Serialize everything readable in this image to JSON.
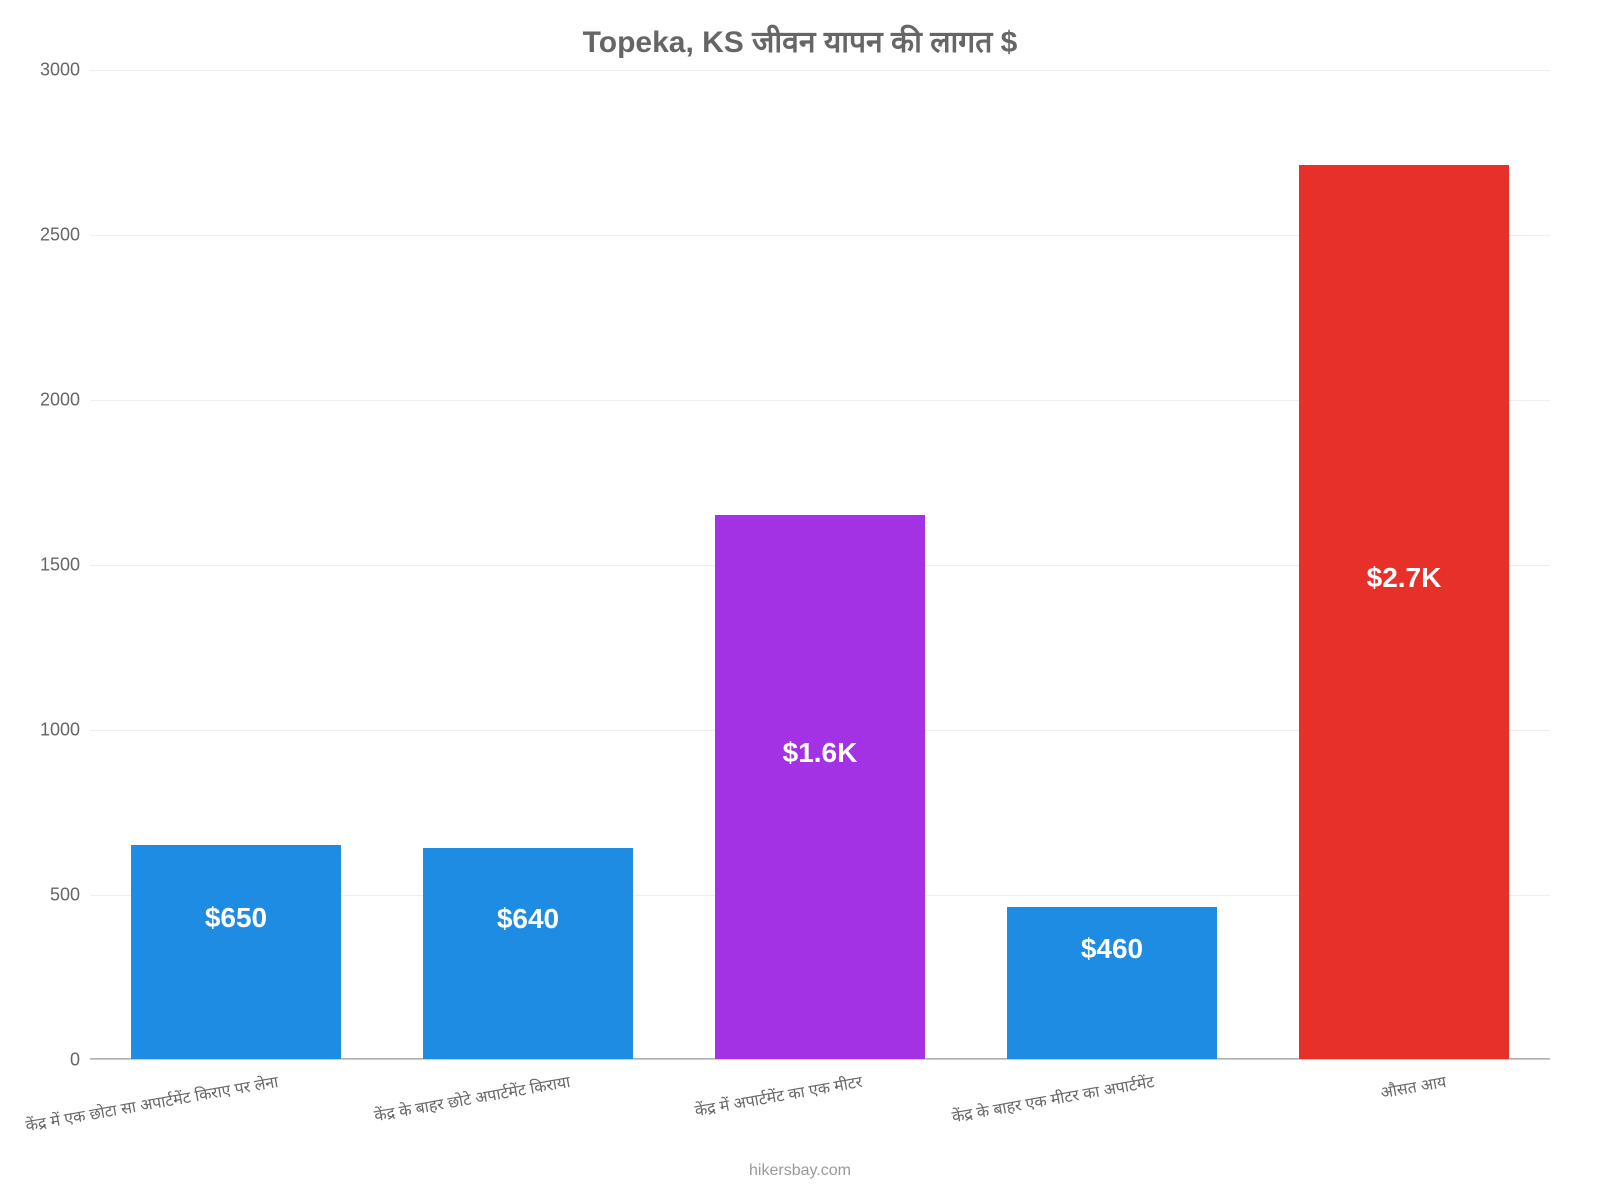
{
  "chart": {
    "type": "bar",
    "title": "Topeka, KS जीवन    यापन    की    लागत    $",
    "title_fontsize": 30,
    "title_color": "#666666",
    "background_color": "#ffffff",
    "grid_color": "#eeeeee",
    "axis_color": "#cccccc",
    "label_color": "#666666",
    "x_tick_fontsize": 16,
    "y_tick_fontsize": 18,
    "bar_label_fontsize": 28,
    "credit_fontsize": 16,
    "ylim": [
      0,
      3000
    ],
    "ytick_step": 500,
    "yticks": [
      0,
      500,
      1000,
      1500,
      2000,
      2500,
      3000
    ],
    "bar_width_ratio": 0.72,
    "categories": [
      "केंद्र में एक छोटा सा अपार्टमेंट किराए पर लेना",
      "केंद्र के बाहर छोटे अपार्टमेंट किराया",
      "केंद्र में अपार्टमेंट का एक मीटर",
      "केंद्र के बाहर एक मीटर का अपार्टमेंट",
      "औसत आय"
    ],
    "values": [
      650,
      640,
      1650,
      460,
      2710
    ],
    "display_values": [
      "$650",
      "$640",
      "$1.6K",
      "$460",
      "$2.7K"
    ],
    "bar_colors": [
      "#1f8ce3",
      "#1f8ce3",
      "#a332e5",
      "#1f8ce3",
      "#e7302a"
    ],
    "bar_label_color": "#ffffff",
    "credit": "hikersbay.com",
    "credit_color": "#999999"
  }
}
